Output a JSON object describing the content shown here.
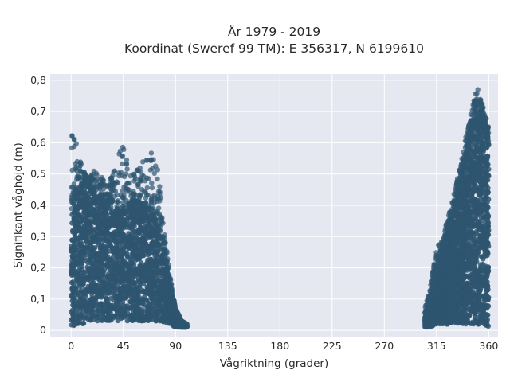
{
  "chart_data": {
    "type": "scatter",
    "title": "År 1979 - 2019",
    "subtitle": "Koordinat (Sweref 99 TM): E 356317, N 6199610",
    "xlabel": "Vågriktning (grader)",
    "ylabel": "Signifikant våghöjd (m)",
    "xlim": [
      -18,
      368
    ],
    "ylim": [
      -0.02,
      0.82
    ],
    "xticks": [
      0,
      45,
      90,
      135,
      180,
      225,
      270,
      315,
      360
    ],
    "xtick_labels": [
      "0",
      "45",
      "90",
      "135",
      "180",
      "225",
      "270",
      "315",
      "360"
    ],
    "yticks": [
      0,
      0.1,
      0.2,
      0.3,
      0.4,
      0.5,
      0.6,
      0.7,
      0.8
    ],
    "ytick_labels": [
      "0",
      "0,1",
      "0,2",
      "0,3",
      "0,4",
      "0,5",
      "0,6",
      "0,7",
      "0,8"
    ],
    "grid": true,
    "legend": "none",
    "marker_color": "#2e5570",
    "background_color": "#e5e8f0",
    "clusters": [
      {
        "x": [
          0,
          5,
          10,
          15,
          20,
          25,
          30,
          35,
          40,
          45,
          50,
          55,
          60,
          65,
          70,
          75,
          80,
          85,
          90,
          95,
          100
        ],
        "y_min": [
          0.01,
          0.02,
          0.02,
          0.03,
          0.03,
          0.03,
          0.03,
          0.03,
          0.03,
          0.03,
          0.03,
          0.03,
          0.03,
          0.03,
          0.03,
          0.03,
          0.02,
          0.02,
          0.01,
          0.01,
          0.01
        ],
        "y_dense_top": [
          0.38,
          0.44,
          0.47,
          0.46,
          0.43,
          0.42,
          0.41,
          0.39,
          0.38,
          0.4,
          0.4,
          0.4,
          0.39,
          0.39,
          0.38,
          0.34,
          0.27,
          0.15,
          0.07,
          0.03,
          0.02
        ],
        "y_max": [
          0.66,
          0.59,
          0.52,
          0.48,
          0.52,
          0.5,
          0.47,
          0.49,
          0.56,
          0.61,
          0.51,
          0.5,
          0.54,
          0.58,
          0.57,
          0.52,
          0.33,
          0.18,
          0.07,
          0.03,
          0.02
        ]
      },
      {
        "x": [
          305,
          310,
          315,
          320,
          325,
          330,
          335,
          340,
          345,
          350,
          355,
          360
        ],
        "y_min": [
          0.01,
          0.01,
          0.02,
          0.02,
          0.02,
          0.02,
          0.02,
          0.02,
          0.02,
          0.02,
          0.02,
          0.01
        ],
        "y_dense_top": [
          0.04,
          0.1,
          0.18,
          0.25,
          0.3,
          0.38,
          0.44,
          0.55,
          0.63,
          0.67,
          0.68,
          0.6
        ],
        "y_max": [
          0.07,
          0.15,
          0.26,
          0.3,
          0.36,
          0.44,
          0.52,
          0.62,
          0.7,
          0.78,
          0.72,
          0.65
        ]
      }
    ]
  }
}
